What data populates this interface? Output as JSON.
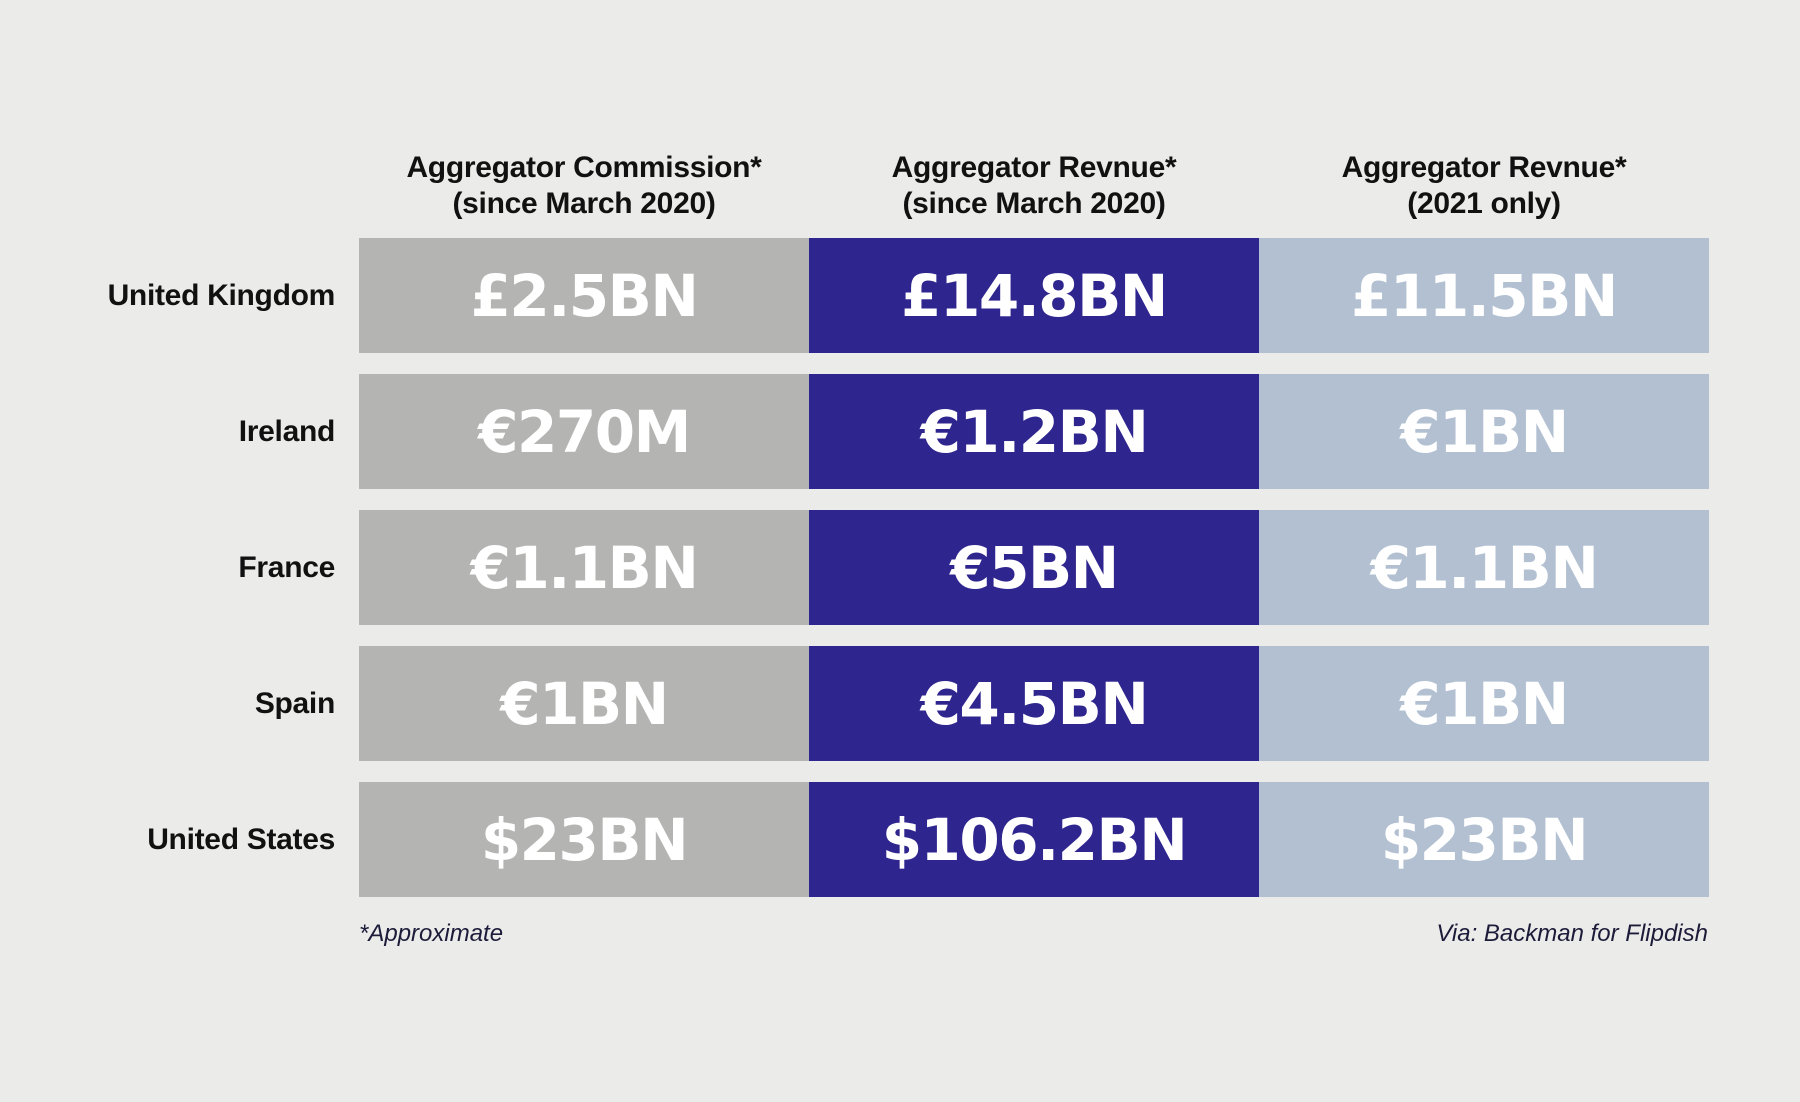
{
  "colors": {
    "background": "#ebebe9",
    "commission": "#b4b4b3",
    "revenue_since_2020": "#2f258e",
    "revenue_2021": "#b2c0d2"
  },
  "columns": [
    {
      "line1": "Aggregator Commission*",
      "line2": "(since March 2020)"
    },
    {
      "line1": "Aggregator Revnue*",
      "line2": "(since March 2020)"
    },
    {
      "line1": "Aggregator Revnue*",
      "line2": "(2021 only)"
    }
  ],
  "rows": [
    {
      "country": "United Kingdom",
      "values": [
        "£2.5BN",
        "£14.8BN",
        "£11.5BN"
      ]
    },
    {
      "country": "Ireland",
      "values": [
        "€270M",
        "€1.2BN",
        "€1BN"
      ]
    },
    {
      "country": "France",
      "values": [
        "€1.1BN",
        "€5BN",
        "€1.1BN"
      ]
    },
    {
      "country": "Spain",
      "values": [
        "€1BN",
        "€4.5BN",
        "€1BN"
      ]
    },
    {
      "country": "United States",
      "values": [
        "$23BN",
        "$106.2BN",
        "$23BN"
      ]
    }
  ],
  "footnote_left": "*Approximate",
  "footnote_right": "Via: Backman for Flipdish",
  "chart_data": {
    "type": "table",
    "columns": [
      "Aggregator Commission* (since March 2020)",
      "Aggregator Revnue* (since March 2020)",
      "Aggregator Revnue* (2021 only)"
    ],
    "rows": [
      "United Kingdom",
      "Ireland",
      "France",
      "Spain",
      "United States"
    ],
    "cells": [
      [
        "£2.5BN",
        "£14.8BN",
        "£11.5BN"
      ],
      [
        "€270M",
        "€1.2BN",
        "€1BN"
      ],
      [
        "€1.1BN",
        "€5BN",
        "€1.1BN"
      ],
      [
        "€1BN",
        "€4.5BN",
        "€1BN"
      ],
      [
        "$23BN",
        "$106.2BN",
        "$23BN"
      ]
    ]
  }
}
